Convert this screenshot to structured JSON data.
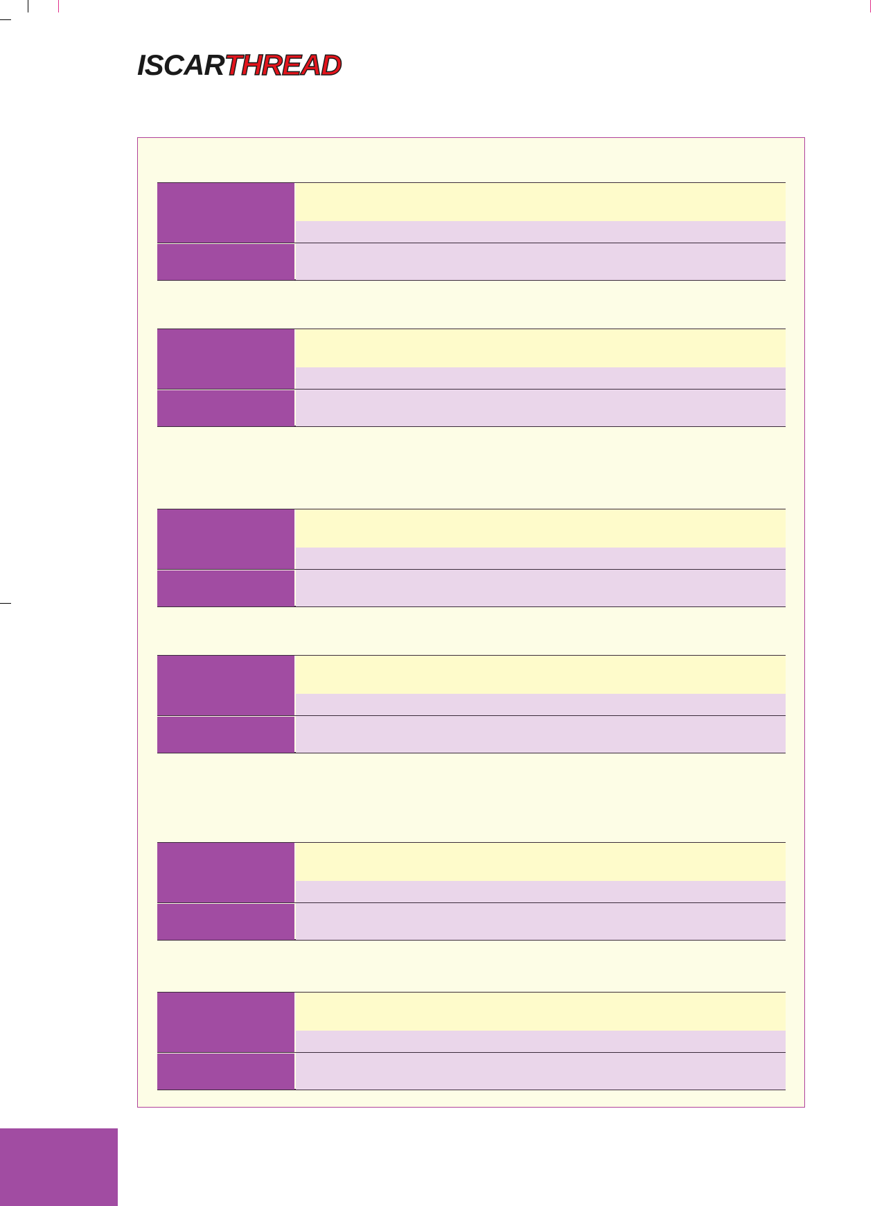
{
  "logo": {
    "part1": "ISCAR",
    "part2": "THREAD"
  },
  "colors": {
    "panel_bg": "#fdfde6",
    "panel_border": "#b0409a",
    "label_purple": "#a14ca2",
    "row_yellow": "#fefbcb",
    "row_lilac": "#ead6ea",
    "logo_red": "#e3141c"
  },
  "tables": [
    {
      "id": 1
    },
    {
      "id": 2
    },
    {
      "id": 3
    },
    {
      "id": 4
    },
    {
      "id": 5
    },
    {
      "id": 6
    }
  ]
}
